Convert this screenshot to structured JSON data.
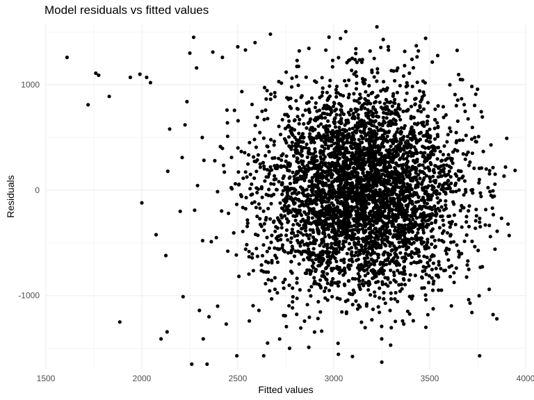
{
  "chart_data": {
    "type": "scatter",
    "title": "Model residuals vs fitted values",
    "xlabel": "Fitted values",
    "ylabel": "Residuals",
    "xlim": [
      1500,
      4000
    ],
    "ylim": [
      -1700,
      1580
    ],
    "x_ticks": [
      1500,
      2000,
      2500,
      3000,
      3500,
      4000
    ],
    "y_ticks": [
      -1000,
      0,
      1000
    ],
    "grid": true,
    "point_color": "#000000",
    "cluster": {
      "count": 4200,
      "center_x": 3150,
      "sd_x": 260,
      "center_y": 0,
      "sd_y": 480,
      "y_limit": [
        -1650,
        1560
      ],
      "x_limit": [
        1550,
        3950
      ]
    },
    "points": [
      {
        "x": 1610,
        "y": 1260
      },
      {
        "x": 1720,
        "y": 810
      },
      {
        "x": 1760,
        "y": 1110
      },
      {
        "x": 1775,
        "y": 1090
      },
      {
        "x": 1830,
        "y": 890
      },
      {
        "x": 1885,
        "y": -1250
      },
      {
        "x": 1940,
        "y": 1070
      },
      {
        "x": 1990,
        "y": 1100
      },
      {
        "x": 2000,
        "y": -120
      },
      {
        "x": 2025,
        "y": 1070
      },
      {
        "x": 2045,
        "y": 1020
      },
      {
        "x": 2100,
        "y": -1410
      },
      {
        "x": 2125,
        "y": -620
      },
      {
        "x": 2135,
        "y": 180
      },
      {
        "x": 2145,
        "y": 580
      },
      {
        "x": 2210,
        "y": 310
      },
      {
        "x": 2215,
        "y": -1010
      },
      {
        "x": 2225,
        "y": 620
      },
      {
        "x": 2235,
        "y": 840
      },
      {
        "x": 2250,
        "y": 1300
      },
      {
        "x": 2260,
        "y": -1650
      },
      {
        "x": 2270,
        "y": 1450
      },
      {
        "x": 2285,
        "y": 1160
      },
      {
        "x": 2320,
        "y": -1410
      },
      {
        "x": 2340,
        "y": -1650
      },
      {
        "x": 2370,
        "y": 1310
      },
      {
        "x": 2395,
        "y": -1100
      },
      {
        "x": 2420,
        "y": 1260
      },
      {
        "x": 2440,
        "y": -1270
      },
      {
        "x": 2500,
        "y": 1360
      },
      {
        "x": 2495,
        "y": -1570
      },
      {
        "x": 2540,
        "y": 1330
      },
      {
        "x": 2590,
        "y": 1400
      },
      {
        "x": 2635,
        "y": -1570
      },
      {
        "x": 2670,
        "y": 1480
      },
      {
        "x": 2770,
        "y": -1500
      },
      {
        "x": 2870,
        "y": -1490
      },
      {
        "x": 3035,
        "y": 1440
      },
      {
        "x": 3225,
        "y": 1550
      },
      {
        "x": 3250,
        "y": -1410
      },
      {
        "x": 3285,
        "y": 1330
      },
      {
        "x": 3430,
        "y": 1370
      },
      {
        "x": 3480,
        "y": -1300
      },
      {
        "x": 3660,
        "y": 1050
      },
      {
        "x": 3720,
        "y": -1160
      },
      {
        "x": 3740,
        "y": 910
      },
      {
        "x": 3760,
        "y": -1570
      },
      {
        "x": 3790,
        "y": -330
      },
      {
        "x": 3810,
        "y": -940
      },
      {
        "x": 3830,
        "y": -1180
      },
      {
        "x": 3850,
        "y": -1220
      },
      {
        "x": 3895,
        "y": 220
      },
      {
        "x": 3770,
        "y": 210
      },
      {
        "x": 3700,
        "y": 360
      },
      {
        "x": 3740,
        "y": -290
      },
      {
        "x": 3820,
        "y": -50
      },
      {
        "x": 3605,
        "y": 1000
      },
      {
        "x": 2560,
        "y": -1240
      },
      {
        "x": 2610,
        "y": -1140
      },
      {
        "x": 2655,
        "y": -1450
      },
      {
        "x": 2300,
        "y": -1140
      },
      {
        "x": 2350,
        "y": -1200
      },
      {
        "x": 2200,
        "y": -200
      },
      {
        "x": 2275,
        "y": -190
      },
      {
        "x": 2315,
        "y": 500
      },
      {
        "x": 2380,
        "y": 280
      }
    ]
  }
}
